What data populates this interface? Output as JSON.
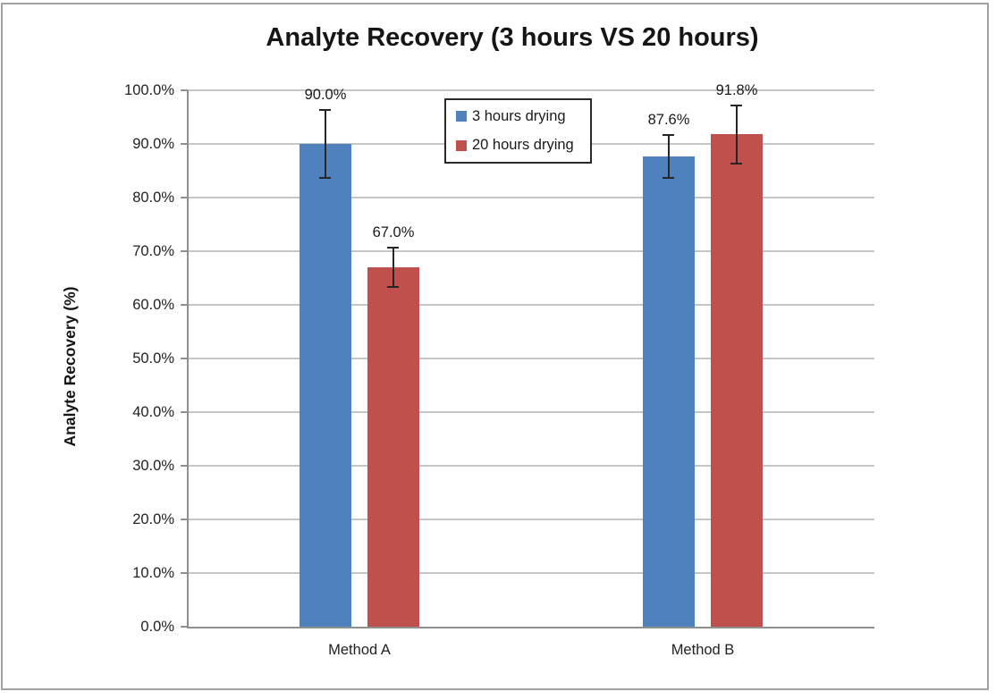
{
  "chart_data": {
    "type": "bar",
    "title": "Analyte Recovery (3 hours VS 20 hours)",
    "ylabel": "Analyte Recovery (%)",
    "xlabel": "",
    "categories": [
      "Method A",
      "Method B"
    ],
    "series": [
      {
        "name": "3 hours drying",
        "color": "#4F81BD",
        "values": [
          90.0,
          87.6
        ],
        "data_labels": [
          "90.0%",
          "87.6%"
        ],
        "error_bars_pct": [
          6.3,
          4.0
        ]
      },
      {
        "name": "20 hours drying",
        "color": "#C0504D",
        "values": [
          67.0,
          91.8
        ],
        "data_labels": [
          "67.0%",
          "91.8%"
        ],
        "error_bars_pct": [
          3.7,
          5.4
        ]
      }
    ],
    "ylim": [
      0,
      100
    ],
    "ytick_step": 10,
    "ytick_labels": [
      "100.0%",
      "90.0%",
      "80.0%",
      "70.0%",
      "60.0%",
      "50.0%",
      "40.0%",
      "30.0%",
      "20.0%",
      "10.0%",
      "0.0%"
    ],
    "grid": true,
    "legend": {
      "position": "inside-top-center",
      "entries": [
        "3 hours drying",
        "20 hours drying"
      ]
    }
  },
  "colors": {
    "series_1": "#4F81BD",
    "series_2": "#C0504D",
    "gridline": "#c6c6c6",
    "axis": "#8f8f8f",
    "error_bar": "#262626",
    "frame_border": "#a2a2a2",
    "text": "#1a1a1a"
  }
}
